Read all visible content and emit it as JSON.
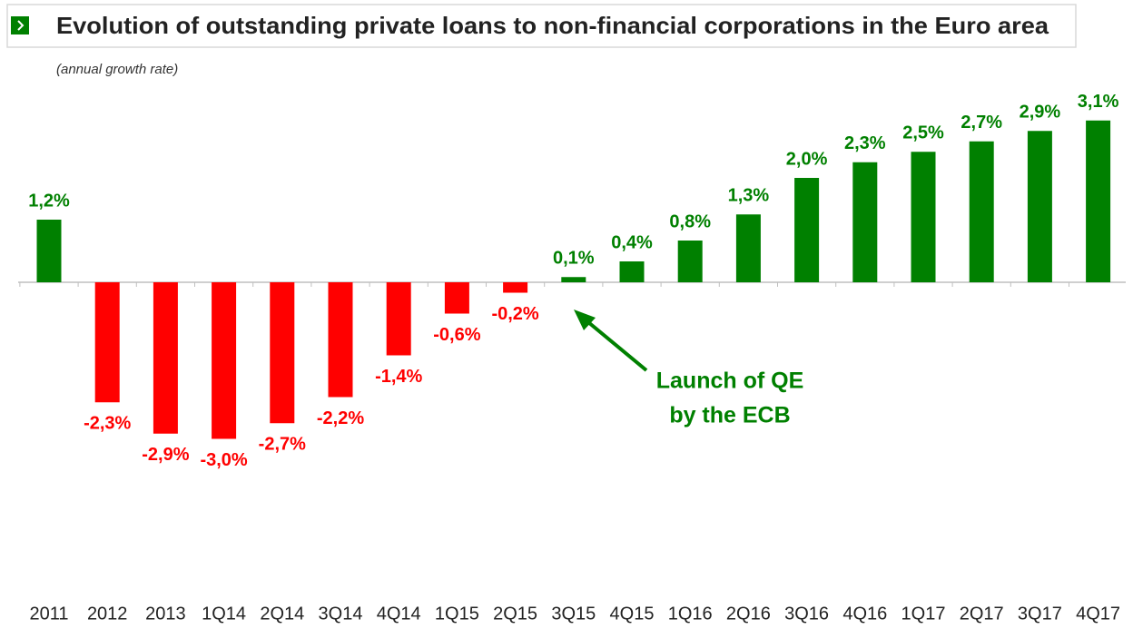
{
  "chart_data": {
    "type": "bar",
    "title": "Evolution of outstanding private loans to non-financial corporations in the Euro area",
    "subtitle": "(annual growth rate)",
    "annotation": [
      "Launch of QE",
      "by the ECB"
    ],
    "categories": [
      "2011",
      "2012",
      "2013",
      "1Q14",
      "2Q14",
      "3Q14",
      "4Q14",
      "1Q15",
      "2Q15",
      "3Q15",
      "4Q15",
      "1Q16",
      "2Q16",
      "3Q16",
      "4Q16",
      "1Q17",
      "2Q17",
      "3Q17",
      "4Q17"
    ],
    "values": [
      1.2,
      -2.3,
      -2.9,
      -3.0,
      -2.7,
      -2.2,
      -1.4,
      -0.6,
      -0.2,
      0.1,
      0.4,
      0.8,
      1.3,
      2.0,
      2.3,
      2.5,
      2.7,
      2.9,
      3.1
    ],
    "value_labels": [
      "1,2%",
      "-2,3%",
      "-2,9%",
      "-3,0%",
      "-2,7%",
      "-2,2%",
      "-1,4%",
      "-0,6%",
      "-0,2%",
      "0,1%",
      "0,4%",
      "0,8%",
      "1,3%",
      "2,0%",
      "2,3%",
      "2,5%",
      "2,7%",
      "2,9%",
      "3,1%"
    ],
    "positive_color": "#008000",
    "negative_color": "#ff0000"
  }
}
